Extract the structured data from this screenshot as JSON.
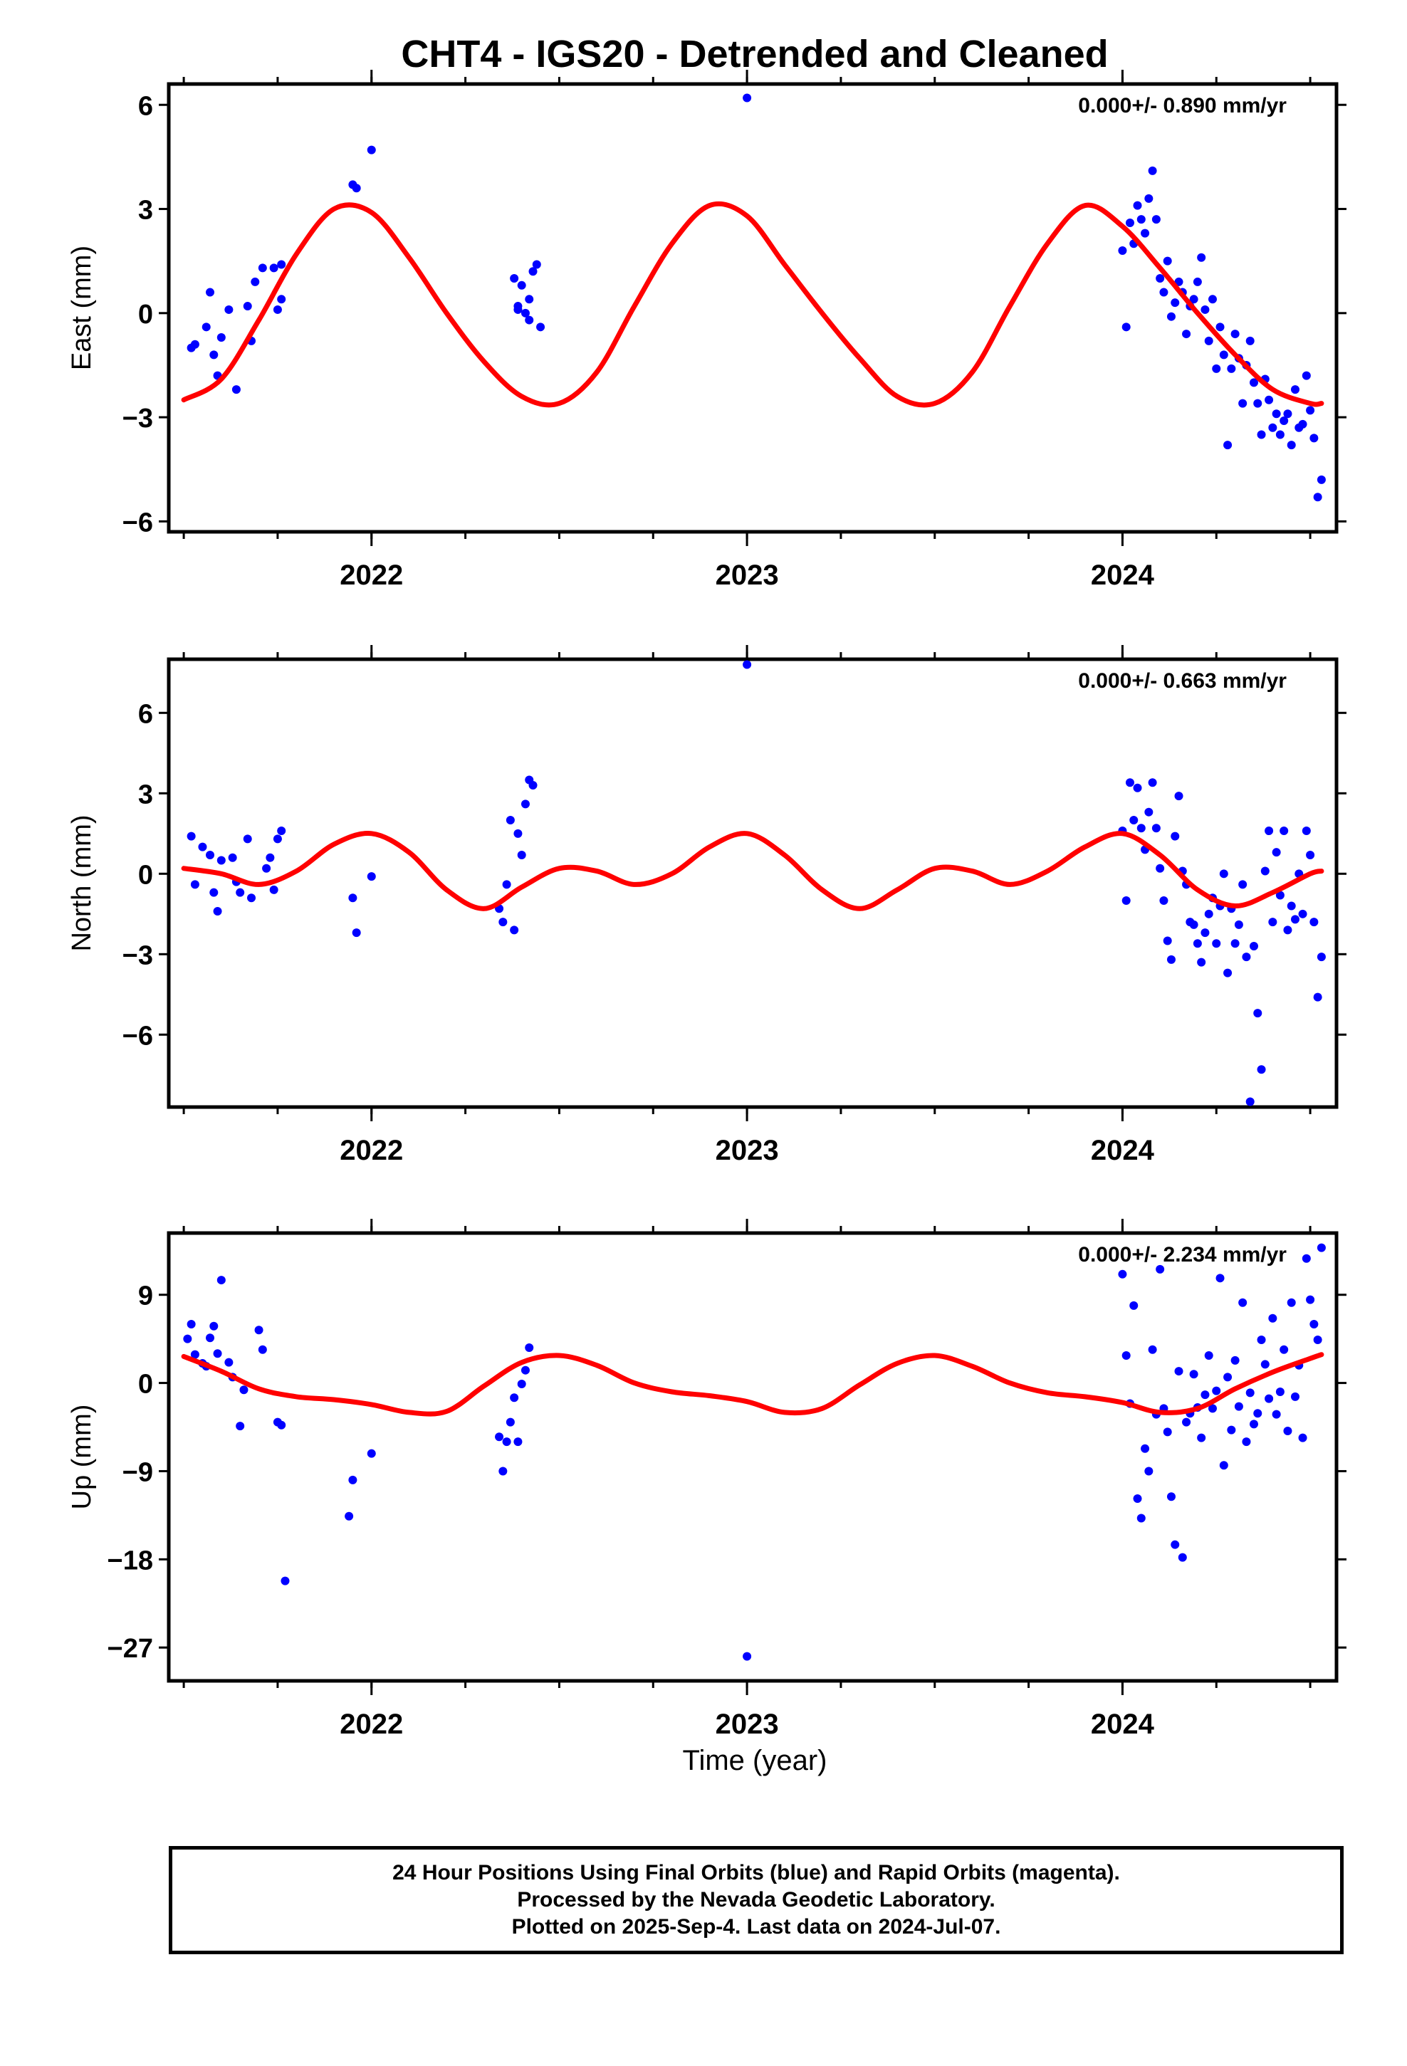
{
  "title": "CHT4 - IGS20 - Detrended and Cleaned",
  "xlabel": "Time (year)",
  "colors": {
    "data": "#0000ff",
    "model": "#ff0000",
    "axis": "#000000"
  },
  "footer": {
    "line1": "24 Hour Positions Using Final Orbits (blue) and Rapid Orbits (magenta).",
    "line2": "Processed by the Nevada Geodetic Laboratory.",
    "line3": "Plotted on 2025-Sep-4. Last data on 2024-Jul-07."
  },
  "chart_data": [
    {
      "type": "scatter",
      "component": "east",
      "ylabel": "East (mm)",
      "rate_annotation": "0.000+/- 0.890 mm/yr",
      "xlim": [
        2021.46,
        2024.57
      ],
      "ylim": [
        -6.3,
        6.6
      ],
      "xticks": [
        2022,
        2023,
        2024
      ],
      "yticks": [
        -6,
        -3,
        0,
        3,
        6
      ],
      "yticklabels": [
        "−6",
        "−3",
        "0",
        "3",
        "6"
      ],
      "model_curve": {
        "name": "",
        "x": [
          2021.5,
          2021.6,
          2021.7,
          2021.8,
          2021.9,
          2022.0,
          2022.1,
          2022.2,
          2022.3,
          2022.4,
          2022.5,
          2022.6,
          2022.7,
          2022.8,
          2022.9,
          2023.0,
          2023.1,
          2023.2,
          2023.3,
          2023.4,
          2023.5,
          2023.6,
          2023.7,
          2023.8,
          2023.9,
          2024.0,
          2024.1,
          2024.2,
          2024.3,
          2024.4,
          2024.5,
          2024.53
        ],
        "y": [
          -2.5,
          -1.9,
          -0.2,
          1.7,
          3.0,
          2.9,
          1.6,
          0.0,
          -1.4,
          -2.4,
          -2.6,
          -1.7,
          0.2,
          2.0,
          3.1,
          2.8,
          1.4,
          0.0,
          -1.3,
          -2.4,
          -2.6,
          -1.7,
          0.2,
          2.0,
          3.1,
          2.5,
          1.3,
          0.0,
          -1.2,
          -2.2,
          -2.6,
          -2.6
        ]
      },
      "points": {
        "x": [
          2021.52,
          2021.53,
          2021.56,
          2021.57,
          2021.58,
          2021.59,
          2021.6,
          2021.62,
          2021.64,
          2021.67,
          2021.68,
          2021.69,
          2021.71,
          2021.74,
          2021.75,
          2021.76,
          2021.76,
          2021.95,
          2021.96,
          2022.0,
          2022.38,
          2022.39,
          2022.39,
          2022.4,
          2022.41,
          2022.42,
          2022.42,
          2022.43,
          2022.44,
          2022.45,
          2023.0,
          2024.0,
          2024.01,
          2024.02,
          2024.03,
          2024.04,
          2024.05,
          2024.06,
          2024.07,
          2024.08,
          2024.09,
          2024.1,
          2024.11,
          2024.12,
          2024.13,
          2024.14,
          2024.15,
          2024.16,
          2024.17,
          2024.18,
          2024.19,
          2024.2,
          2024.21,
          2024.22,
          2024.23,
          2024.24,
          2024.25,
          2024.26,
          2024.27,
          2024.28,
          2024.29,
          2024.3,
          2024.31,
          2024.32,
          2024.33,
          2024.34,
          2024.35,
          2024.36,
          2024.37,
          2024.38,
          2024.39,
          2024.4,
          2024.41,
          2024.42,
          2024.43,
          2024.44,
          2024.45,
          2024.46,
          2024.47,
          2024.48,
          2024.49,
          2024.5,
          2024.51,
          2024.52,
          2024.53
        ],
        "y": [
          -1.0,
          -0.9,
          -0.4,
          0.6,
          -1.2,
          -1.8,
          -0.7,
          0.1,
          -2.2,
          0.2,
          -0.8,
          0.9,
          1.3,
          1.3,
          0.1,
          0.4,
          1.4,
          3.7,
          3.6,
          4.7,
          1.0,
          0.1,
          0.2,
          0.8,
          0.0,
          -0.2,
          0.4,
          1.2,
          1.4,
          -0.4,
          6.2,
          1.8,
          -0.4,
          2.6,
          2.0,
          3.1,
          2.7,
          2.3,
          3.3,
          4.1,
          2.7,
          1.0,
          0.6,
          1.5,
          -0.1,
          0.3,
          0.9,
          0.6,
          -0.6,
          0.2,
          0.4,
          0.9,
          1.6,
          0.1,
          -0.8,
          0.4,
          -1.6,
          -0.4,
          -1.2,
          -3.8,
          -1.6,
          -0.6,
          -1.3,
          -2.6,
          -1.5,
          -0.8,
          -2.0,
          -2.6,
          -3.5,
          -1.9,
          -2.5,
          -3.3,
          -2.9,
          -3.5,
          -3.1,
          -2.9,
          -3.8,
          -2.2,
          -3.3,
          -3.2,
          -1.8,
          -2.8,
          -3.6,
          -5.3,
          -4.8
        ]
      }
    },
    {
      "type": "scatter",
      "component": "north",
      "ylabel": "North (mm)",
      "rate_annotation": "0.000+/- 0.663 mm/yr",
      "xlim": [
        2021.46,
        2024.57
      ],
      "ylim": [
        -8.7,
        8.0
      ],
      "xticks": [
        2022,
        2023,
        2024
      ],
      "yticks": [
        -6,
        -3,
        0,
        3,
        6
      ],
      "yticklabels": [
        "−6",
        "−3",
        "0",
        "3",
        "6"
      ],
      "model_curve": {
        "name": "",
        "x": [
          2021.5,
          2021.6,
          2021.7,
          2021.8,
          2021.9,
          2022.0,
          2022.1,
          2022.2,
          2022.3,
          2022.4,
          2022.5,
          2022.6,
          2022.7,
          2022.8,
          2022.9,
          2023.0,
          2023.1,
          2023.2,
          2023.3,
          2023.4,
          2023.5,
          2023.6,
          2023.7,
          2023.8,
          2023.9,
          2024.0,
          2024.1,
          2024.2,
          2024.3,
          2024.4,
          2024.5,
          2024.53
        ],
        "y": [
          0.2,
          0.0,
          -0.4,
          0.1,
          1.1,
          1.5,
          0.8,
          -0.6,
          -1.3,
          -0.5,
          0.2,
          0.1,
          -0.4,
          0.0,
          1.0,
          1.5,
          0.7,
          -0.6,
          -1.3,
          -0.6,
          0.2,
          0.1,
          -0.4,
          0.1,
          1.0,
          1.5,
          0.7,
          -0.6,
          -1.2,
          -0.7,
          0.0,
          0.1
        ]
      },
      "points": {
        "x": [
          2021.52,
          2021.53,
          2021.55,
          2021.57,
          2021.58,
          2021.59,
          2021.6,
          2021.63,
          2021.64,
          2021.65,
          2021.67,
          2021.68,
          2021.72,
          2021.73,
          2021.74,
          2021.75,
          2021.76,
          2021.95,
          2021.96,
          2022.0,
          2022.34,
          2022.35,
          2022.36,
          2022.37,
          2022.38,
          2022.39,
          2022.4,
          2022.41,
          2022.42,
          2022.43,
          2023.0,
          2024.0,
          2024.01,
          2024.02,
          2024.03,
          2024.04,
          2024.05,
          2024.06,
          2024.07,
          2024.08,
          2024.09,
          2024.1,
          2024.11,
          2024.12,
          2024.13,
          2024.14,
          2024.15,
          2024.16,
          2024.17,
          2024.18,
          2024.19,
          2024.2,
          2024.21,
          2024.22,
          2024.23,
          2024.24,
          2024.25,
          2024.26,
          2024.27,
          2024.28,
          2024.29,
          2024.3,
          2024.31,
          2024.32,
          2024.33,
          2024.34,
          2024.35,
          2024.36,
          2024.37,
          2024.38,
          2024.39,
          2024.4,
          2024.41,
          2024.42,
          2024.43,
          2024.44,
          2024.45,
          2024.46,
          2024.47,
          2024.48,
          2024.49,
          2024.5,
          2024.51,
          2024.52,
          2024.53
        ],
        "y": [
          1.4,
          -0.4,
          1.0,
          0.7,
          -0.7,
          -1.4,
          0.5,
          0.6,
          -0.3,
          -0.7,
          1.3,
          -0.9,
          0.2,
          0.6,
          -0.6,
          1.3,
          1.6,
          -0.9,
          -2.2,
          -0.1,
          -1.3,
          -1.8,
          -0.4,
          2.0,
          -2.1,
          1.5,
          0.7,
          2.6,
          3.5,
          3.3,
          7.8,
          1.6,
          -1.0,
          3.4,
          2.0,
          3.2,
          1.7,
          0.9,
          2.3,
          3.4,
          1.7,
          0.2,
          -1.0,
          -2.5,
          -3.2,
          1.4,
          2.9,
          0.1,
          -0.4,
          -1.8,
          -1.9,
          -2.6,
          -3.3,
          -2.2,
          -1.5,
          -0.9,
          -2.6,
          -1.2,
          0.0,
          -3.7,
          -1.3,
          -2.6,
          -1.9,
          -0.4,
          -3.1,
          -8.5,
          -2.7,
          -5.2,
          -7.3,
          0.1,
          1.6,
          -1.8,
          0.8,
          -0.8,
          1.6,
          -2.1,
          -1.2,
          -1.7,
          0.0,
          -1.5,
          1.6,
          0.7,
          -1.8,
          -4.6,
          -3.1
        ]
      }
    },
    {
      "type": "scatter",
      "component": "up",
      "ylabel": "Up (mm)",
      "rate_annotation": "0.000+/- 2.234 mm/yr",
      "xlim": [
        2021.46,
        2024.57
      ],
      "ylim": [
        -30.4,
        15.3
      ],
      "xticks": [
        2022,
        2023,
        2024
      ],
      "yticks": [
        -27,
        -18,
        -9,
        0,
        9
      ],
      "yticklabels": [
        "−27",
        "−18",
        "−9",
        "0",
        "9"
      ],
      "model_curve": {
        "name": "",
        "x": [
          2021.5,
          2021.6,
          2021.7,
          2021.8,
          2021.9,
          2022.0,
          2022.1,
          2022.2,
          2022.3,
          2022.4,
          2022.5,
          2022.6,
          2022.7,
          2022.8,
          2022.9,
          2023.0,
          2023.1,
          2023.2,
          2023.3,
          2023.4,
          2023.5,
          2023.6,
          2023.7,
          2023.8,
          2023.9,
          2024.0,
          2024.1,
          2024.2,
          2024.3,
          2024.4,
          2024.5,
          2024.53
        ],
        "y": [
          2.7,
          1.2,
          -0.6,
          -1.4,
          -1.7,
          -2.2,
          -3.0,
          -2.9,
          -0.3,
          2.1,
          2.8,
          1.8,
          0.0,
          -0.9,
          -1.3,
          -1.9,
          -3.0,
          -2.6,
          -0.2,
          2.0,
          2.8,
          1.7,
          0.0,
          -1.0,
          -1.4,
          -2.0,
          -3.0,
          -2.6,
          -0.6,
          1.1,
          2.5,
          2.9
        ]
      },
      "points": {
        "x": [
          2021.51,
          2021.52,
          2021.53,
          2021.55,
          2021.56,
          2021.57,
          2021.58,
          2021.59,
          2021.6,
          2021.62,
          2021.63,
          2021.65,
          2021.66,
          2021.7,
          2021.71,
          2021.75,
          2021.76,
          2021.77,
          2021.94,
          2021.95,
          2022.0,
          2022.34,
          2022.35,
          2022.36,
          2022.37,
          2022.38,
          2022.39,
          2022.4,
          2022.41,
          2022.42,
          2023.0,
          2024.0,
          2024.01,
          2024.02,
          2024.03,
          2024.04,
          2024.05,
          2024.06,
          2024.07,
          2024.08,
          2024.09,
          2024.1,
          2024.11,
          2024.12,
          2024.13,
          2024.14,
          2024.15,
          2024.16,
          2024.17,
          2024.18,
          2024.19,
          2024.2,
          2024.21,
          2024.22,
          2024.23,
          2024.24,
          2024.25,
          2024.26,
          2024.27,
          2024.28,
          2024.29,
          2024.3,
          2024.31,
          2024.32,
          2024.33,
          2024.34,
          2024.35,
          2024.36,
          2024.37,
          2024.38,
          2024.39,
          2024.4,
          2024.41,
          2024.42,
          2024.43,
          2024.44,
          2024.45,
          2024.46,
          2024.47,
          2024.48,
          2024.49,
          2024.5,
          2024.51,
          2024.52,
          2024.53
        ],
        "y": [
          4.5,
          6.0,
          2.9,
          2.0,
          1.7,
          4.6,
          5.8,
          3.0,
          10.5,
          2.1,
          0.6,
          -4.4,
          -0.7,
          5.4,
          3.4,
          -4.0,
          -4.3,
          -20.2,
          -13.6,
          -9.9,
          -7.2,
          -5.5,
          -9.0,
          -6.0,
          -4.0,
          -1.5,
          -6.0,
          -0.1,
          1.3,
          3.6,
          -27.9,
          11.1,
          2.8,
          -2.1,
          7.9,
          -11.8,
          -13.8,
          -6.7,
          -9.0,
          3.4,
          -3.2,
          11.6,
          -2.6,
          -5.0,
          -11.6,
          -16.5,
          1.2,
          -17.8,
          -4.0,
          -3.1,
          0.9,
          -2.5,
          -5.6,
          -1.2,
          2.8,
          -2.6,
          -0.8,
          10.7,
          -8.4,
          0.6,
          -4.8,
          2.3,
          -2.4,
          8.2,
          -6.0,
          -1.0,
          -4.2,
          -3.1,
          4.4,
          1.9,
          -1.6,
          6.6,
          -3.2,
          -0.9,
          3.4,
          -4.9,
          8.2,
          -1.4,
          1.8,
          -5.6,
          12.7,
          8.5,
          6.0,
          4.4,
          13.8
        ]
      }
    }
  ]
}
